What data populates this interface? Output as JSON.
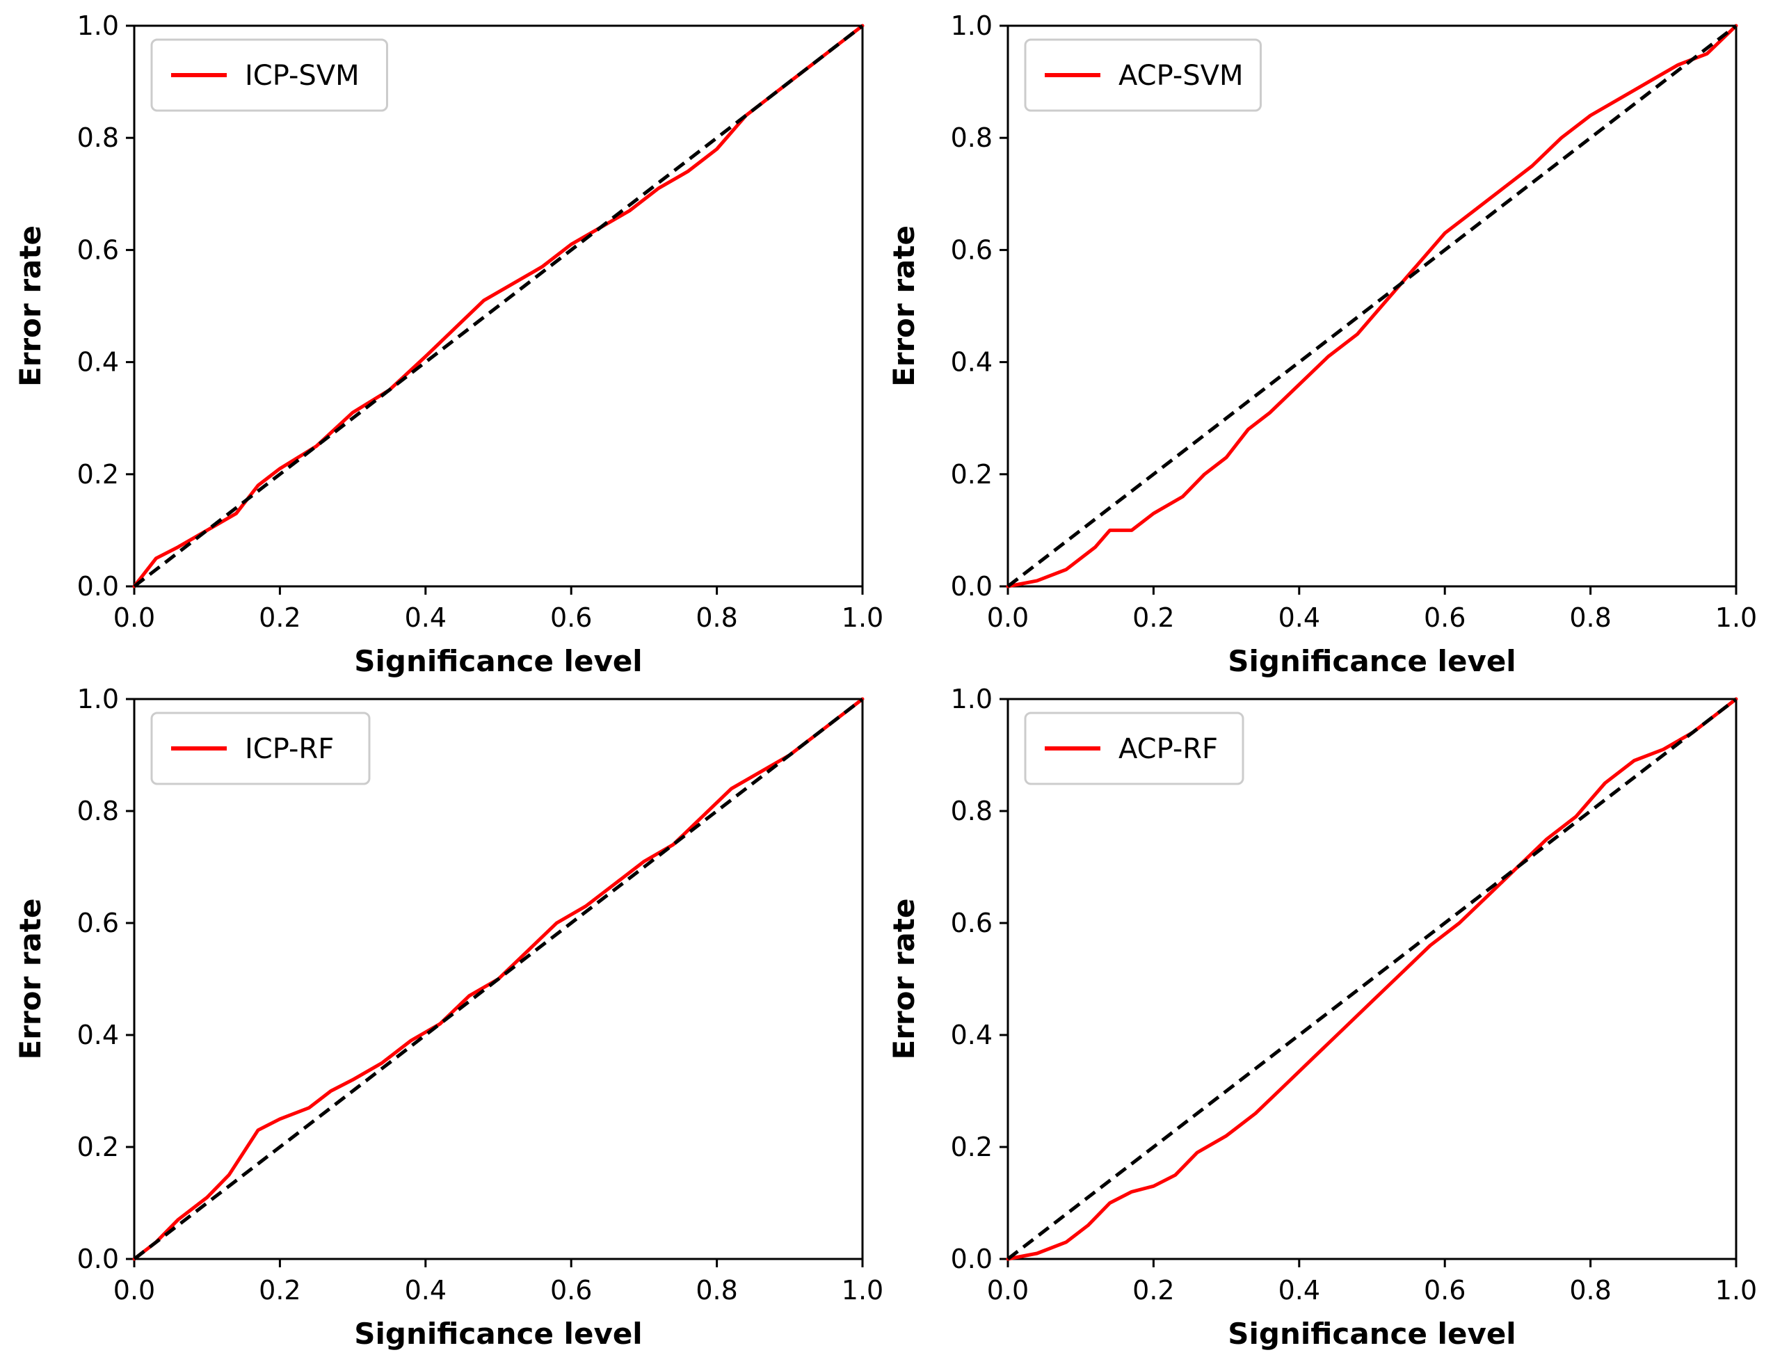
{
  "colors": {
    "series": "#ff0000",
    "reference": "#000000",
    "axes": "#000000",
    "background": "#ffffff"
  },
  "chart_data": [
    {
      "type": "line",
      "xlabel": "Significance level",
      "ylabel": "Error rate",
      "xlim": [
        0,
        1
      ],
      "ylim": [
        0,
        1
      ],
      "xticks": [
        "0.0",
        "0.2",
        "0.4",
        "0.6",
        "0.8",
        "1.0"
      ],
      "yticks": [
        "0.0",
        "0.2",
        "0.4",
        "0.6",
        "0.8",
        "1.0"
      ],
      "legend": "top-left",
      "series": [
        {
          "name": "ICP-SVM",
          "style": "solid red",
          "x": [
            0,
            0.03,
            0.06,
            0.1,
            0.14,
            0.17,
            0.2,
            0.25,
            0.3,
            0.35,
            0.4,
            0.44,
            0.48,
            0.52,
            0.56,
            0.6,
            0.64,
            0.68,
            0.72,
            0.76,
            0.8,
            0.84,
            0.87,
            0.9,
            0.94,
            0.97,
            1.0
          ],
          "y": [
            0,
            0.05,
            0.07,
            0.1,
            0.13,
            0.18,
            0.21,
            0.25,
            0.31,
            0.35,
            0.41,
            0.46,
            0.51,
            0.54,
            0.57,
            0.61,
            0.64,
            0.67,
            0.71,
            0.74,
            0.78,
            0.84,
            0.87,
            0.9,
            0.94,
            0.97,
            1.0
          ]
        },
        {
          "name": "reference",
          "style": "dashed black",
          "x": [
            0,
            1
          ],
          "y": [
            0,
            1
          ]
        }
      ]
    },
    {
      "type": "line",
      "xlabel": "Significance level",
      "ylabel": "Error rate",
      "xlim": [
        0,
        1
      ],
      "ylim": [
        0,
        1
      ],
      "xticks": [
        "0.0",
        "0.2",
        "0.4",
        "0.6",
        "0.8",
        "1.0"
      ],
      "yticks": [
        "0.0",
        "0.2",
        "0.4",
        "0.6",
        "0.8",
        "1.0"
      ],
      "legend": "top-left",
      "series": [
        {
          "name": "ACP-SVM",
          "style": "solid red",
          "x": [
            0,
            0.04,
            0.08,
            0.12,
            0.14,
            0.17,
            0.2,
            0.24,
            0.27,
            0.3,
            0.33,
            0.36,
            0.4,
            0.44,
            0.48,
            0.52,
            0.56,
            0.6,
            0.64,
            0.68,
            0.72,
            0.76,
            0.8,
            0.84,
            0.88,
            0.92,
            0.96,
            1.0
          ],
          "y": [
            0,
            0.01,
            0.03,
            0.07,
            0.1,
            0.1,
            0.13,
            0.16,
            0.2,
            0.23,
            0.28,
            0.31,
            0.36,
            0.41,
            0.45,
            0.51,
            0.57,
            0.63,
            0.67,
            0.71,
            0.75,
            0.8,
            0.84,
            0.87,
            0.9,
            0.93,
            0.95,
            1.0
          ]
        },
        {
          "name": "reference",
          "style": "dashed black",
          "x": [
            0,
            1
          ],
          "y": [
            0,
            1
          ]
        }
      ]
    },
    {
      "type": "line",
      "xlabel": "Significance level",
      "ylabel": "Error rate",
      "xlim": [
        0,
        1
      ],
      "ylim": [
        0,
        1
      ],
      "xticks": [
        "0.0",
        "0.2",
        "0.4",
        "0.6",
        "0.8",
        "1.0"
      ],
      "yticks": [
        "0.0",
        "0.2",
        "0.4",
        "0.6",
        "0.8",
        "1.0"
      ],
      "legend": "top-left",
      "series": [
        {
          "name": "ICP-RF",
          "style": "solid red",
          "x": [
            0,
            0.03,
            0.06,
            0.1,
            0.13,
            0.17,
            0.2,
            0.24,
            0.27,
            0.3,
            0.34,
            0.38,
            0.42,
            0.46,
            0.5,
            0.54,
            0.58,
            0.62,
            0.66,
            0.7,
            0.74,
            0.78,
            0.82,
            0.86,
            0.9,
            0.94,
            0.97,
            1.0
          ],
          "y": [
            0,
            0.03,
            0.07,
            0.11,
            0.15,
            0.23,
            0.25,
            0.27,
            0.3,
            0.32,
            0.35,
            0.39,
            0.42,
            0.47,
            0.5,
            0.55,
            0.6,
            0.63,
            0.67,
            0.71,
            0.74,
            0.79,
            0.84,
            0.87,
            0.9,
            0.94,
            0.97,
            1.0
          ]
        },
        {
          "name": "reference",
          "style": "dashed black",
          "x": [
            0,
            1
          ],
          "y": [
            0,
            1
          ]
        }
      ]
    },
    {
      "type": "line",
      "xlabel": "Significance level",
      "ylabel": "Error rate",
      "xlim": [
        0,
        1
      ],
      "ylim": [
        0,
        1
      ],
      "xticks": [
        "0.0",
        "0.2",
        "0.4",
        "0.6",
        "0.8",
        "1.0"
      ],
      "yticks": [
        "0.0",
        "0.2",
        "0.4",
        "0.6",
        "0.8",
        "1.0"
      ],
      "legend": "top-left",
      "series": [
        {
          "name": "ACP-RF",
          "style": "solid red",
          "x": [
            0,
            0.04,
            0.08,
            0.11,
            0.14,
            0.17,
            0.2,
            0.23,
            0.26,
            0.3,
            0.34,
            0.38,
            0.42,
            0.46,
            0.5,
            0.54,
            0.58,
            0.62,
            0.66,
            0.7,
            0.74,
            0.78,
            0.82,
            0.86,
            0.9,
            0.94,
            0.97,
            1.0
          ],
          "y": [
            0,
            0.01,
            0.03,
            0.06,
            0.1,
            0.12,
            0.13,
            0.15,
            0.19,
            0.22,
            0.26,
            0.31,
            0.36,
            0.41,
            0.46,
            0.51,
            0.56,
            0.6,
            0.65,
            0.7,
            0.75,
            0.79,
            0.85,
            0.89,
            0.91,
            0.94,
            0.97,
            1.0
          ]
        },
        {
          "name": "reference",
          "style": "dashed black",
          "x": [
            0,
            1
          ],
          "y": [
            0,
            1
          ]
        }
      ]
    }
  ]
}
